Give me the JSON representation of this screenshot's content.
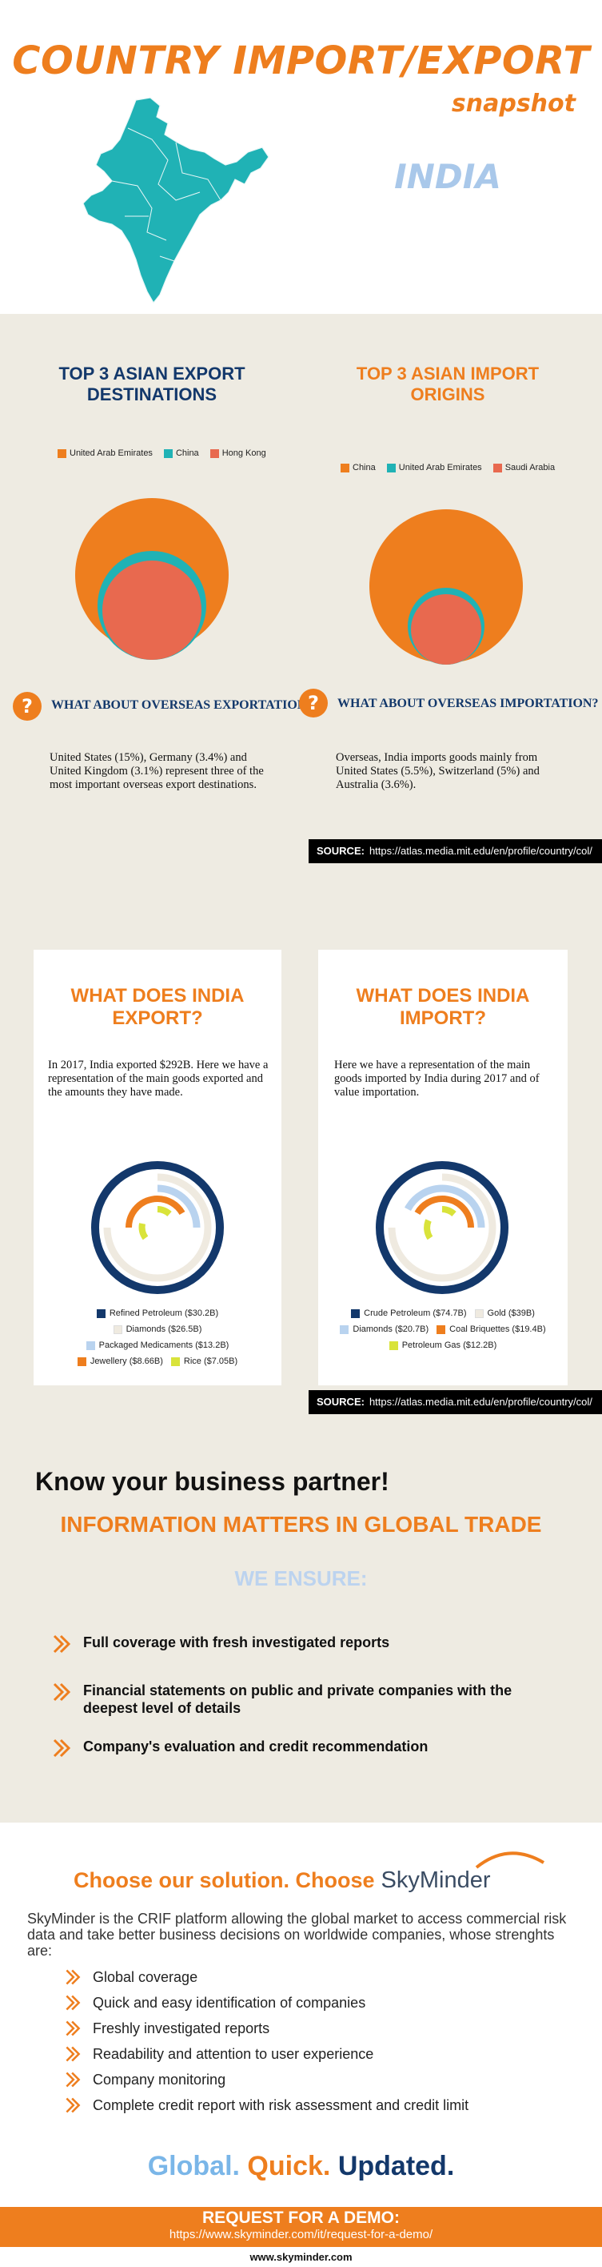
{
  "header": {
    "title": "COUNTRY IMPORT/EXPORT",
    "subtitle": "snapshot",
    "country": "INDIA"
  },
  "asia": {
    "export_title": "TOP 3 ASIAN EXPORT DESTINATIONS",
    "import_title": "TOP 3 ASIAN IMPORT ORIGINS",
    "export_legend": [
      {
        "label": "United Arab Emirates",
        "color": "#ee7e1e"
      },
      {
        "label": "China",
        "color": "#20b2b5"
      },
      {
        "label": "Hong Kong",
        "color": "#e8694f"
      }
    ],
    "import_legend": [
      {
        "label": "China",
        "color": "#ee7e1e"
      },
      {
        "label": "United Arab Emirates",
        "color": "#20b2b5"
      },
      {
        "label": "Saudi Arabia",
        "color": "#e8694f"
      }
    ],
    "q_export_title": "WHAT ABOUT OVERSEAS EXPORTATION?",
    "q_import_title": "WHAT ABOUT OVERSEAS IMPORTATION?",
    "q_icon": "?",
    "export_text": "United States  (15%), Germany (3.4%) and United Kingdom (3.1%)  represent three of the most important overseas export destinations.",
    "import_text": "Overseas, India imports goods mainly from United States  (5.5%), Switzerland (5%) and Australia (3.6%).",
    "source_label": "SOURCE:",
    "source_url": "https://atlas.media.mit.edu/en/profile/country/col/"
  },
  "goods": {
    "export_title": "WHAT DOES INDIA EXPORT?",
    "import_title": "WHAT DOES INDIA IMPORT?",
    "export_text": "In 2017, India exported $292B. Here we have a representation of the main goods exported and the amounts they have made.",
    "import_text": "Here we have a representation of the main goods imported by India during 2017 and of value importation.",
    "export_legend": [
      {
        "label": "Refined Petroleum ($30.2B)",
        "color": "#13386b"
      },
      {
        "label": "Diamonds ($26.5B)",
        "color": "#efeae0"
      },
      {
        "label": "Packaged Medicaments ($13.2B)",
        "color": "#b9d3ef"
      },
      {
        "label": "Jewellery ($8.66B)",
        "color": "#ee7e1e"
      },
      {
        "label": "Rice ($7.05B)",
        "color": "#d9e33a"
      }
    ],
    "import_legend": [
      {
        "label": "Crude Petroleum ($74.7B)",
        "color": "#13386b"
      },
      {
        "label": "Gold ($39B)",
        "color": "#efeae0"
      },
      {
        "label": "Diamonds ($20.7B)",
        "color": "#b9d3ef"
      },
      {
        "label": "Coal Briquettes ($19.4B)",
        "color": "#ee7e1e"
      },
      {
        "label": "Petroleum Gas ($12.2B)",
        "color": "#d9e33a"
      }
    ],
    "source_label": "SOURCE:",
    "source_url": "https://atlas.media.mit.edu/en/profile/country/col/"
  },
  "partner": {
    "title": "Know your business partner!",
    "info": "INFORMATION MATTERS IN GLOBAL TRADE",
    "ensure": "WE ENSURE:",
    "bullets": [
      "Full coverage with fresh investigated reports",
      "Financial statements on public and private companies with the deepest level of details",
      "Company's evaluation and credit recommendation"
    ]
  },
  "solution": {
    "choose": "Choose our solution. Choose",
    "brand": "SkyMinder",
    "paragraph": "SkyMinder is the CRIF platform allowing the global market to access commercial risk data and take better business decisions on worldwide companies, whose strenghts are:",
    "features": [
      "Global coverage",
      "Quick and easy identification of companies",
      "Freshly investigated reports",
      "Readability and attention to user experience",
      "Company monitoring",
      "Complete credit report with risk assessment and credit limit"
    ],
    "slogan_1": "Global.",
    "slogan_2": "Quick.",
    "slogan_3": "Updated."
  },
  "footer": {
    "request": "REQUEST FOR A DEMO:",
    "request_url": "https://www.skyminder.com/it/request-for-a-demo/",
    "site": "www.skyminder.com"
  },
  "colors": {
    "orange": "#ee7e1e",
    "navy": "#13386b",
    "teal": "#20b2b5",
    "salmon": "#e8694f",
    "light_blue": "#b9d3ef",
    "beige": "#eeebe2"
  },
  "icons": [
    "india-map-icon",
    "question-icon",
    "chevron-right-icon",
    "skyminder-arc-icon"
  ]
}
